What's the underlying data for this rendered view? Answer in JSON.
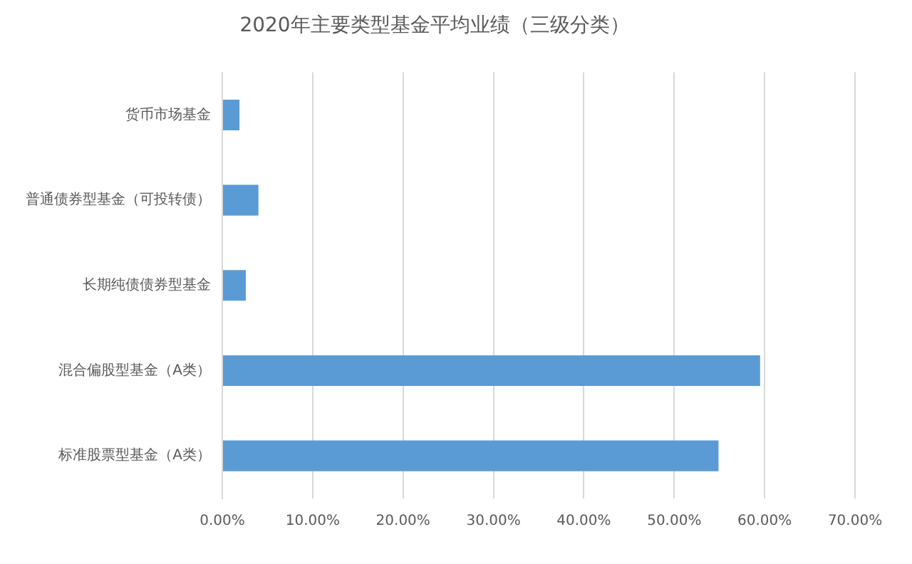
{
  "chart_data": {
    "type": "bar",
    "orientation": "horizontal",
    "title": "2020年主要类型基金平均业绩（三级分类）",
    "categories": [
      "货币市场基金",
      "普通债券型基金（可投转债）",
      "长期纯债债券型基金",
      "混合偏股型基金（A类）",
      "标准股票型基金（A类）"
    ],
    "values": [
      1.9,
      4.0,
      2.6,
      59.5,
      54.9
    ],
    "color": "#5b9bd5",
    "xlim": [
      0,
      70
    ],
    "xticks": [
      {
        "value": 0,
        "label": "0.00%"
      },
      {
        "value": 10,
        "label": "10.00%"
      },
      {
        "value": 20,
        "label": "20.00%"
      },
      {
        "value": 30,
        "label": "30.00%"
      },
      {
        "value": 40,
        "label": "40.00%"
      },
      {
        "value": 50,
        "label": "50.00%"
      },
      {
        "value": 60,
        "label": "60.00%"
      },
      {
        "value": 70,
        "label": "70.00%"
      }
    ],
    "grid": "x",
    "legend": false
  }
}
